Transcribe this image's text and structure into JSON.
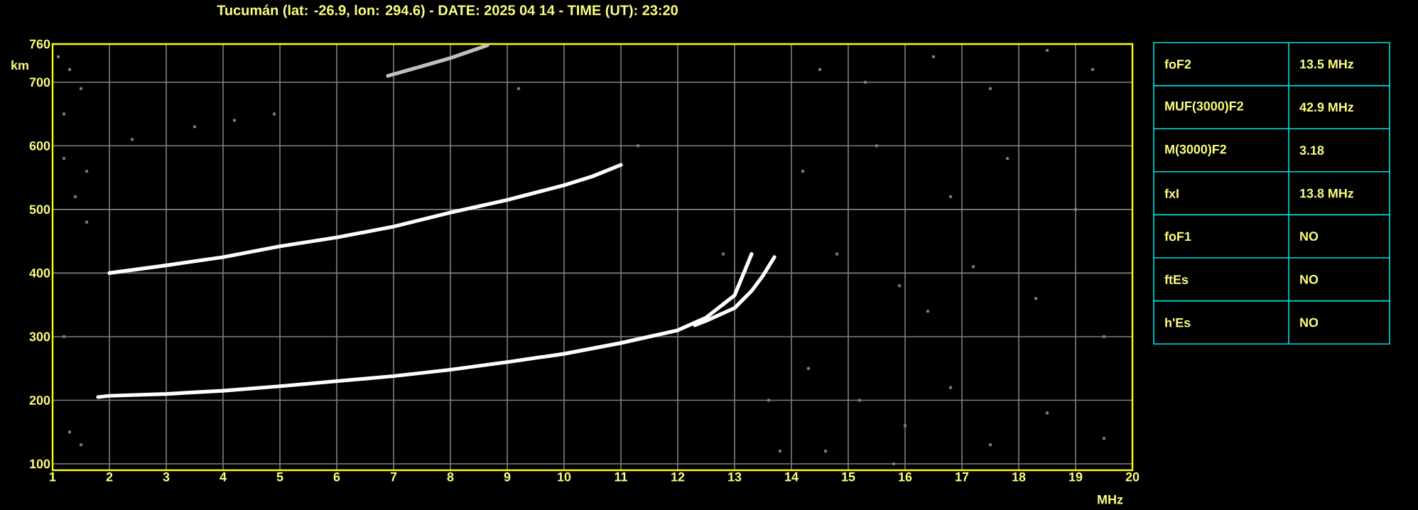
{
  "chart_data": [
    {
      "type": "line",
      "title": "Tucumán (lat: -26.9, lon: 294.6) - DATE: 2025 04 14 - TIME (UT): 23:20",
      "xlabel": "MHz",
      "ylabel": "km",
      "xlim": [
        1,
        20
      ],
      "ylim": [
        90,
        760
      ],
      "xticks": [
        1,
        2,
        3,
        4,
        5,
        6,
        7,
        8,
        9,
        10,
        11,
        12,
        13,
        14,
        15,
        16,
        17,
        18,
        19,
        20
      ],
      "yticks": [
        100,
        200,
        300,
        400,
        500,
        600,
        700,
        760
      ],
      "grid": true,
      "line_style": "solid",
      "series": [
        {
          "type": "line",
          "color": "#ffffff",
          "x": [
            1.8,
            2,
            3,
            4,
            5,
            6,
            7,
            8,
            9,
            10,
            11,
            12,
            12.5,
            13,
            13.3
          ],
          "values": [
            205,
            207,
            210,
            215,
            222,
            230,
            238,
            248,
            260,
            273,
            290,
            310,
            330,
            365,
            430
          ]
        },
        {
          "type": "line",
          "color": "#ffffff",
          "x": [
            12.3,
            12.5,
            13,
            13.3,
            13.5,
            13.7
          ],
          "values": [
            318,
            325,
            345,
            372,
            396,
            425
          ]
        },
        {
          "type": "line",
          "color": "#ffffff",
          "x": [
            2,
            3,
            4,
            5,
            6,
            7,
            8,
            9,
            10,
            10.5,
            11
          ],
          "values": [
            400,
            412,
            425,
            442,
            456,
            473,
            495,
            515,
            538,
            552,
            570
          ]
        },
        {
          "type": "line",
          "color": "#c0c0c0",
          "x": [
            6.9,
            7.5,
            8,
            8.65
          ],
          "values": [
            710,
            725,
            738,
            758
          ]
        },
        {
          "type": "scatter",
          "marker": "square",
          "color": "#808080",
          "x": [
            1.1,
            1.3,
            1.2,
            1.5,
            1.6,
            1.4,
            1.6,
            1.2,
            2.4,
            3.5,
            4.2,
            4.9,
            9.2,
            14.5,
            15.3,
            16.5,
            17.5,
            18.5,
            19.3,
            14.2,
            15.5,
            16.8,
            17.8,
            19,
            14.8,
            15.9,
            16.4,
            17.2,
            18.3,
            19.5,
            14.3,
            15.2,
            16,
            16.8,
            17.5,
            18.5,
            19.5,
            14.6,
            15.8,
            13.6,
            13.8,
            1.3,
            1.5,
            1.2,
            11.3,
            12.8
          ],
          "values": [
            740,
            720,
            650,
            690,
            560,
            520,
            480,
            580,
            610,
            630,
            640,
            650,
            690,
            720,
            700,
            740,
            690,
            750,
            720,
            560,
            600,
            520,
            580,
            500,
            430,
            380,
            340,
            410,
            360,
            300,
            250,
            200,
            160,
            220,
            130,
            180,
            140,
            120,
            100,
            200,
            120,
            150,
            130,
            300,
            600,
            430
          ]
        }
      ]
    },
    {
      "type": "other",
      "annotations": [
        "foF2",
        "13.5 MHz",
        "MUF(3000)F2",
        "42.9 MHz",
        "M(3000)F2",
        "3.18",
        "fxI",
        "13.8 MHz",
        "foF1",
        "NO",
        "ftEs",
        "NO",
        "h'Es",
        "NO"
      ]
    }
  ]
}
